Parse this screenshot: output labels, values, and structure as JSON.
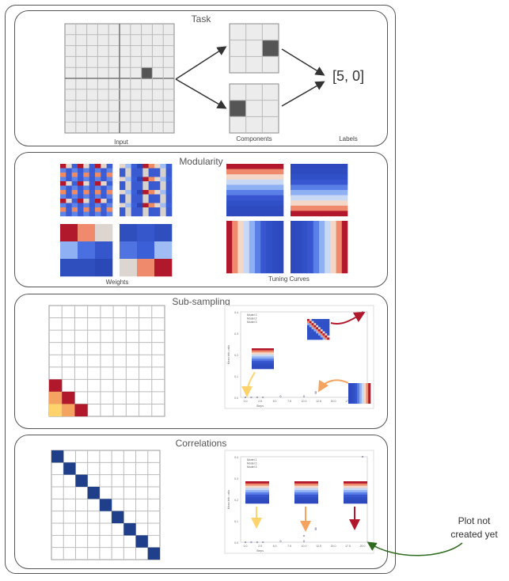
{
  "task": {
    "title": "Task",
    "input_caption": "Input",
    "components_caption": "Components",
    "labels_caption": "Labels",
    "label_value": "[5, 0]"
  },
  "modularity": {
    "title": "Modularity",
    "weights_caption": "Weights",
    "tuning_caption": "Tuning Curves"
  },
  "subsampling": {
    "title": "Sub-sampling",
    "legend": [
      "Model 1",
      "Model 2",
      "Model 3"
    ],
    "ylabel": "Mean Info. ratio",
    "xlabel": "Steps",
    "yticks": [
      "0.0",
      "0.1",
      "0.2",
      "0.3",
      "0.4"
    ],
    "xticks": [
      "0.0",
      "2.5",
      "5.0",
      "7.5",
      "10.0",
      "12.5",
      "15.0",
      "17.5",
      "20.0"
    ]
  },
  "correlations": {
    "title": "Correlations",
    "legend": [
      "Model 1",
      "Model 2",
      "Model 3"
    ],
    "ylabel": "Mean Info. ratio",
    "xlabel": "Steps",
    "yticks": [
      "0.0",
      "0.1",
      "0.2",
      "0.3",
      "0.4"
    ],
    "xticks": [
      "0.0",
      "2.5",
      "5.0",
      "7.5",
      "10.0",
      "12.5",
      "15.0",
      "17.5",
      "20.0"
    ]
  },
  "annotation": {
    "text_line1": "Plot not",
    "text_line2": "created yet"
  },
  "colors": {
    "grid_fill": "#ececec",
    "grid_line": "#b9b9b9",
    "active_cell": "#555555",
    "arrow_dark": "#333333",
    "red": "#b2182b",
    "orange": "#f4a460",
    "yellow": "#ffd36b",
    "blue_dark": "#1f3f8a",
    "green": "#2e6b1f"
  }
}
